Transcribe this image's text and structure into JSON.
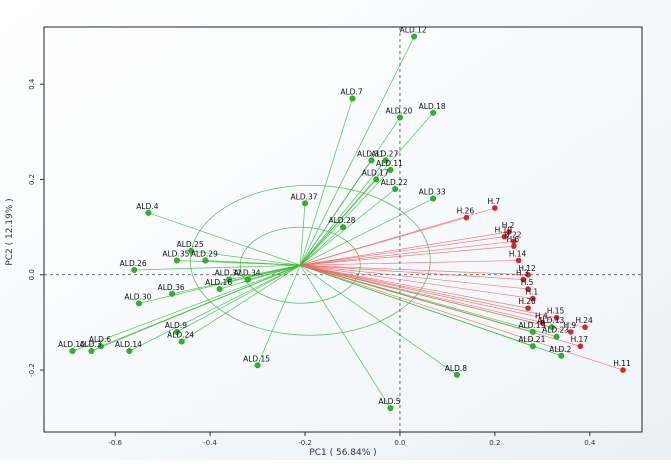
{
  "chart_data": {
    "type": "scatter",
    "xlabel": "PC1 ( 56.84% )",
    "ylabel": "PC2 ( 12.19% )",
    "xlim": [
      -0.75,
      0.51
    ],
    "ylim": [
      -0.33,
      0.52
    ],
    "x_ticks": [
      -0.6,
      -0.4,
      -0.2,
      0.0,
      0.2,
      0.4
    ],
    "x_tick_labels": [
      "-0.6",
      "-0.4",
      "-0.2",
      "0.0",
      "0.2",
      "0.4"
    ],
    "y_ticks": [
      -0.2,
      0.0,
      0.2,
      0.4
    ],
    "y_tick_labels": [
      "-0.2",
      "0.0",
      "0.2",
      "0.4"
    ],
    "origin_lines": true,
    "grid": false,
    "biplot_center": [
      -0.21,
      0.02
    ],
    "colors": {
      "ald": "#22bb22",
      "ald_line": "#33bb33",
      "h": "#dd2222",
      "h_line": "#ee6666",
      "circle": "#66bb66",
      "axis": "#333333"
    },
    "series": [
      {
        "name": "",
        "group": "ald",
        "points": [
          {
            "label": "ALD.12",
            "x": 0.03,
            "y": 0.5
          },
          {
            "label": "ALD.7",
            "x": -0.1,
            "y": 0.37
          },
          {
            "label": "ALD.18",
            "x": 0.07,
            "y": 0.34
          },
          {
            "label": "ALD.20",
            "x": 0.0,
            "y": 0.33
          },
          {
            "label": "ALD.31",
            "x": -0.06,
            "y": 0.24
          },
          {
            "label": "ALD.27",
            "x": -0.03,
            "y": 0.24
          },
          {
            "label": "ALD.11",
            "x": -0.02,
            "y": 0.22
          },
          {
            "label": "ALD.17",
            "x": -0.05,
            "y": 0.2
          },
          {
            "label": "ALD.22",
            "x": -0.01,
            "y": 0.18
          },
          {
            "label": "ALD.33",
            "x": 0.07,
            "y": 0.16
          },
          {
            "label": "ALD.37",
            "x": -0.2,
            "y": 0.15
          },
          {
            "label": "ALD.28",
            "x": -0.12,
            "y": 0.1
          },
          {
            "label": "ALD.4",
            "x": -0.53,
            "y": 0.13
          },
          {
            "label": "ALD.25",
            "x": -0.44,
            "y": 0.05
          },
          {
            "label": "ALD.29",
            "x": -0.41,
            "y": 0.03
          },
          {
            "label": "ALD.35",
            "x": -0.47,
            "y": 0.03
          },
          {
            "label": "ALD.26",
            "x": -0.56,
            "y": 0.01
          },
          {
            "label": "ALD.34",
            "x": -0.32,
            "y": -0.01
          },
          {
            "label": "ALD.32",
            "x": -0.36,
            "y": -0.01
          },
          {
            "label": "ALD.16",
            "x": -0.38,
            "y": -0.03
          },
          {
            "label": "ALD.36",
            "x": -0.48,
            "y": -0.04
          },
          {
            "label": "ALD.30",
            "x": -0.55,
            "y": -0.06
          },
          {
            "label": "ALD.9",
            "x": -0.47,
            "y": -0.12
          },
          {
            "label": "ALD.24",
            "x": -0.46,
            "y": -0.14
          },
          {
            "label": "ALD.6",
            "x": -0.63,
            "y": -0.15
          },
          {
            "label": "ALD.14",
            "x": -0.57,
            "y": -0.16
          },
          {
            "label": "ALD.10",
            "x": -0.69,
            "y": -0.16
          },
          {
            "label": "ALD.3",
            "x": -0.65,
            "y": -0.16
          },
          {
            "label": "ALD.15",
            "x": -0.3,
            "y": -0.19
          },
          {
            "label": "ALD.5",
            "x": -0.02,
            "y": -0.28
          },
          {
            "label": "ALD.8",
            "x": 0.12,
            "y": -0.21
          },
          {
            "label": "ALD.21",
            "x": 0.28,
            "y": -0.15
          },
          {
            "label": "ALD.19",
            "x": 0.28,
            "y": -0.12
          },
          {
            "label": "ALD.2",
            "x": 0.34,
            "y": -0.17
          },
          {
            "label": "ALD.13",
            "x": 0.32,
            "y": -0.11
          },
          {
            "label": "ALD.23",
            "x": 0.33,
            "y": -0.13
          }
        ]
      },
      {
        "name": "",
        "group": "h",
        "points": [
          {
            "label": "H.26",
            "x": 0.14,
            "y": 0.12
          },
          {
            "label": "H.7",
            "x": 0.2,
            "y": 0.14
          },
          {
            "label": "H.2",
            "x": 0.23,
            "y": 0.09
          },
          {
            "label": "H.10",
            "x": 0.22,
            "y": 0.08
          },
          {
            "label": "H.22",
            "x": 0.24,
            "y": 0.07
          },
          {
            "label": "H.6",
            "x": 0.24,
            "y": 0.06
          },
          {
            "label": "H.14",
            "x": 0.25,
            "y": 0.03
          },
          {
            "label": "H.12",
            "x": 0.27,
            "y": 0.0
          },
          {
            "label": "H.3",
            "x": 0.26,
            "y": -0.01
          },
          {
            "label": "H.5",
            "x": 0.27,
            "y": -0.03
          },
          {
            "label": "H.20",
            "x": 0.27,
            "y": -0.07
          },
          {
            "label": "H.1",
            "x": 0.28,
            "y": -0.05
          },
          {
            "label": "H.15",
            "x": 0.33,
            "y": -0.09
          },
          {
            "label": "H.4",
            "x": 0.3,
            "y": -0.1
          },
          {
            "label": "H.24",
            "x": 0.39,
            "y": -0.11
          },
          {
            "label": "H.9",
            "x": 0.36,
            "y": -0.12
          },
          {
            "label": "H.17",
            "x": 0.38,
            "y": -0.15
          },
          {
            "label": "H.11",
            "x": 0.47,
            "y": -0.2
          }
        ]
      }
    ]
  }
}
